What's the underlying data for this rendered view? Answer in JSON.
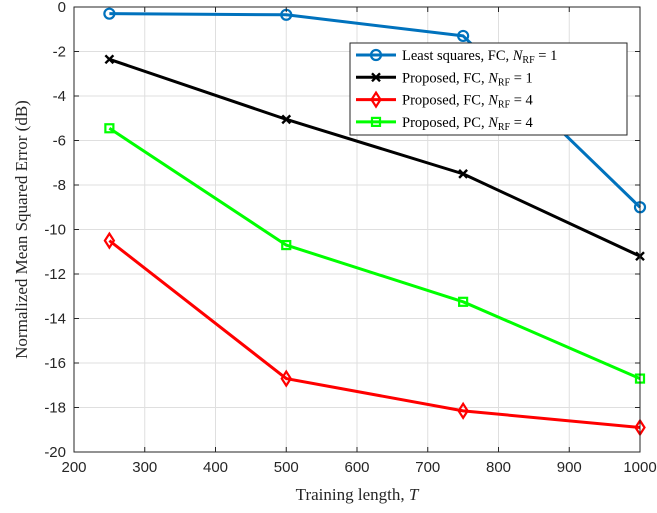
{
  "chart_data": {
    "type": "line",
    "xlabel_text": "Training length, ",
    "xlabel_var": "T",
    "ylabel": "Normalized Mean Squared Error (dB)",
    "xlim": [
      200,
      1000
    ],
    "ylim": [
      -20,
      0
    ],
    "xticks": [
      200,
      300,
      400,
      500,
      600,
      700,
      800,
      900,
      1000
    ],
    "yticks": [
      -20,
      -18,
      -16,
      -14,
      -12,
      -10,
      -8,
      -6,
      -4,
      -2,
      0
    ],
    "grid": true,
    "legend_position": "top-right",
    "x": [
      250,
      500,
      750,
      1000
    ],
    "series": [
      {
        "name_prefix": "Least squares, FC, ",
        "name_rf": "1",
        "color": "#0072BD",
        "marker": "circle",
        "values": [
          -0.3,
          -0.35,
          -1.3,
          -9.0
        ]
      },
      {
        "name_prefix": "Proposed, FC, ",
        "name_rf": "1",
        "color": "#000000",
        "marker": "x",
        "values": [
          -2.35,
          -5.05,
          -7.5,
          -11.2
        ]
      },
      {
        "name_prefix": "Proposed, FC, ",
        "name_rf": "4",
        "color": "#FF0000",
        "marker": "diamond",
        "values": [
          -10.5,
          -16.7,
          -18.15,
          -18.9
        ]
      },
      {
        "name_prefix": "Proposed, PC, ",
        "name_rf": "4",
        "color": "#00FF00",
        "marker": "square",
        "values": [
          -5.45,
          -10.7,
          -13.25,
          -16.7
        ]
      }
    ]
  }
}
